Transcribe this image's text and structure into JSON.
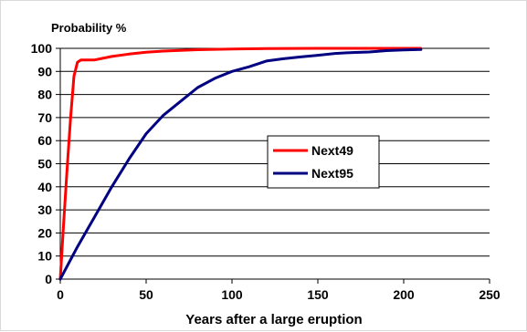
{
  "chart_data": {
    "type": "line",
    "title": "",
    "ylabel": "Probability %",
    "xlabel": "Years after a large eruption",
    "xlim": [
      0,
      250
    ],
    "ylim": [
      0,
      100
    ],
    "x_ticks": [
      0,
      50,
      100,
      150,
      200,
      250
    ],
    "y_ticks": [
      0,
      10,
      20,
      30,
      40,
      50,
      60,
      70,
      80,
      90,
      100
    ],
    "grid": "horizontal",
    "legend": "center-right",
    "series": [
      {
        "name": "Next49",
        "color": "#ff0000",
        "x": [
          0,
          2,
          4,
          6,
          8,
          10,
          12,
          15,
          20,
          30,
          40,
          50,
          60,
          80,
          100,
          120,
          150,
          180,
          210
        ],
        "y": [
          0,
          25,
          48,
          70,
          88,
          94,
          95,
          95,
          95,
          96.5,
          97.5,
          98.3,
          98.8,
          99.4,
          99.7,
          99.9,
          100,
          100,
          100
        ]
      },
      {
        "name": "Next95",
        "color": "#000080",
        "x": [
          0,
          10,
          20,
          30,
          40,
          50,
          60,
          70,
          80,
          90,
          100,
          110,
          120,
          130,
          140,
          150,
          160,
          170,
          180,
          190,
          200,
          210
        ],
        "y": [
          0,
          14,
          27,
          40,
          52,
          63,
          71,
          77,
          83,
          87,
          90,
          92,
          94.5,
          95.5,
          96.3,
          97,
          97.8,
          98.2,
          98.4,
          99,
          99.3,
          99.5
        ]
      }
    ]
  }
}
